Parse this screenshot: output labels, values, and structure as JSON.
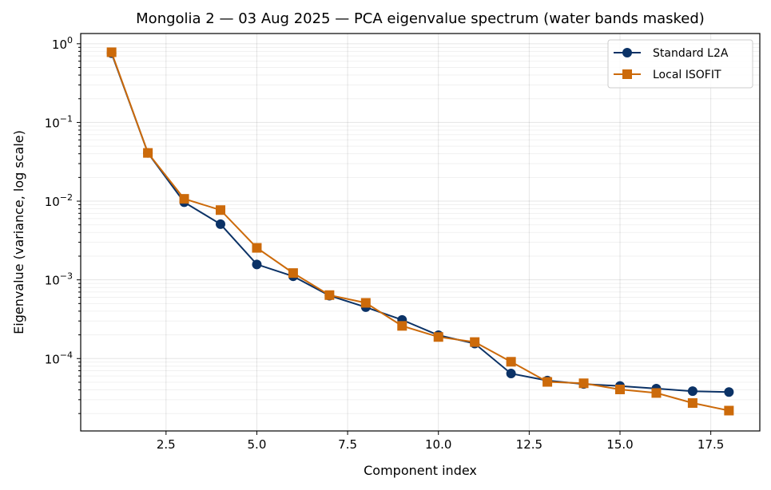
{
  "chart_data": {
    "type": "line",
    "title": "Mongolia 2 — 03 Aug 2025 — PCA eigenvalue spectrum (water bands masked)",
    "xlabel": "Component index",
    "ylabel": "Eigenvalue (variance, log scale)",
    "xlim": [
      0.15,
      18.85
    ],
    "ylim_log10": [
      -4.92,
      0.13
    ],
    "y_scale": "log",
    "grid": true,
    "legend_position": "top-right",
    "x_ticks": [
      2.5,
      5.0,
      7.5,
      10.0,
      12.5,
      15.0,
      17.5
    ],
    "x_tick_labels": [
      "2.5",
      "5.0",
      "7.5",
      "10.0",
      "12.5",
      "15.0",
      "17.5"
    ],
    "y_tick_exponents": [
      -4,
      -3,
      -2,
      -1,
      0
    ],
    "x": [
      1,
      2,
      3,
      4,
      5,
      6,
      7,
      8,
      9,
      10,
      11,
      12,
      13,
      14,
      15,
      16,
      17,
      18
    ],
    "series": [
      {
        "name": "Standard L2A",
        "color": "#0b3266",
        "marker": "circle",
        "values": [
          0.76,
          0.041,
          0.0097,
          0.0051,
          0.00157,
          0.00111,
          0.00063,
          0.00045,
          0.00031,
          0.000198,
          0.000155,
          6.45e-05,
          5.25e-05,
          4.75e-05,
          4.48e-05,
          4.15e-05,
          3.85e-05,
          3.75e-05
        ]
      },
      {
        "name": "Local ISOFIT",
        "color": "#cc6a0a",
        "marker": "square",
        "values": [
          0.78,
          0.041,
          0.0107,
          0.0077,
          0.00255,
          0.00122,
          0.00064,
          0.00051,
          0.00026,
          0.000188,
          0.000162,
          9.1e-05,
          5.05e-05,
          4.85e-05,
          4.05e-05,
          3.65e-05,
          2.72e-05,
          2.18e-05
        ]
      }
    ]
  }
}
